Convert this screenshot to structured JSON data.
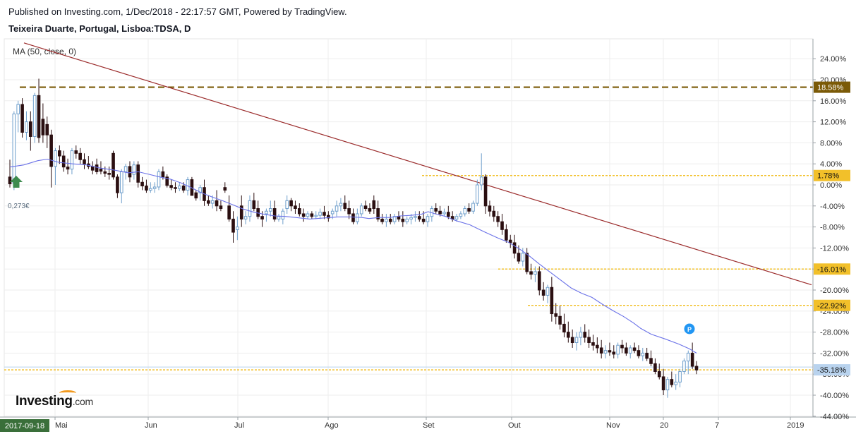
{
  "header": {
    "published": "Published on Investing.com, 1/Dec/2018 - 22:17:57 GMT, Powered by TradingView.",
    "symbol": "Teixeira Duarte, Portugal, Lisboa:TDSA, D"
  },
  "indicator_label": "MA (50, close, 0)",
  "price_note": "0,273€",
  "logo": {
    "brand": "Investing",
    "suffix": ".com"
  },
  "colors": {
    "up_fill": "#ffffff",
    "up_border": "#6f9fcc",
    "down": "#2b0f11",
    "ma_line": "#6b72e8",
    "trend_line": "#9b2b2b",
    "level_dashed_brown": "#7b5a07",
    "level_dotted": "#f2c02a",
    "grid": "#eeeeee",
    "current_tag": "#b9d3ee"
  },
  "chart_data": {
    "type": "candlestick",
    "y_unit": "% change",
    "ylim": [
      -44,
      26
    ],
    "y_ticks": [
      "24.00%",
      "20.00%",
      "16.00%",
      "12.00%",
      "8.00%",
      "4.00%",
      "0.00%",
      "-4.00%",
      "-8.00%",
      "-12.00%",
      "-16.00%",
      "-20.00%",
      "-24.00%",
      "-28.00%",
      "-32.00%",
      "-36.00%",
      "-40.00%",
      "-44.00%"
    ],
    "x_ticks": [
      "2017-09-18",
      "Mai",
      "Jun",
      "Jul",
      "Ago",
      "Set",
      "Out",
      "Nov",
      "20",
      "7",
      "2019"
    ],
    "level_tags": [
      {
        "label": "18.58%",
        "value": 18.58,
        "style": "dashed-brown"
      },
      {
        "label": "1.78%",
        "value": 1.78,
        "style": "dotted"
      },
      {
        "label": "-16.01%",
        "value": -16.01,
        "style": "dotted"
      },
      {
        "label": "-22.92%",
        "value": -22.92,
        "style": "dotted"
      },
      {
        "label": "-35.18%",
        "value": -35.18,
        "style": "current"
      }
    ],
    "candles": [
      [
        1.5,
        4.8,
        -0.5,
        0.2
      ],
      [
        0.3,
        14,
        -1,
        13.5
      ],
      [
        13.5,
        16,
        10,
        15.3
      ],
      [
        15.3,
        16.5,
        9,
        10
      ],
      [
        10,
        14,
        8.5,
        12
      ],
      [
        12,
        14,
        6.5,
        9.2
      ],
      [
        9.2,
        17.5,
        8,
        17
      ],
      [
        17,
        20.2,
        8,
        9
      ],
      [
        12.5,
        15.5,
        8,
        9.5
      ],
      [
        11.5,
        13,
        7,
        9.5
      ],
      [
        9.5,
        10.5,
        -0.5,
        3.5
      ],
      [
        3.5,
        7,
        0,
        6.5
      ],
      [
        6.5,
        7.5,
        4,
        5.5
      ],
      [
        5.5,
        6.5,
        2.5,
        3.4
      ],
      [
        3.4,
        5,
        2,
        3
      ],
      [
        3,
        7,
        2,
        6.5
      ],
      [
        6.5,
        7.5,
        5,
        6
      ],
      [
        6,
        7,
        4,
        4.8
      ],
      [
        4.8,
        6,
        3,
        4
      ],
      [
        4,
        5.5,
        3,
        3.5
      ],
      [
        3.5,
        4.5,
        2,
        2.8
      ],
      [
        3.8,
        5,
        2,
        2.5
      ],
      [
        3,
        4.5,
        2,
        2.6
      ],
      [
        2.5,
        3.5,
        1.5,
        2.2
      ],
      [
        2.2,
        3.5,
        1,
        2
      ],
      [
        6,
        6.5,
        1,
        1.5
      ],
      [
        1.5,
        2,
        -2.5,
        -1.5
      ],
      [
        -1.5,
        3,
        -3.5,
        2.5
      ],
      [
        2.5,
        4,
        1,
        3.5
      ],
      [
        3.5,
        4.5,
        0.5,
        1.5
      ],
      [
        2,
        4.5,
        1,
        3.8
      ],
      [
        3.8,
        4.5,
        -0.5,
        0.5
      ],
      [
        0.5,
        1.5,
        -1,
        -0.2
      ],
      [
        -0.2,
        1,
        -1.5,
        -1
      ],
      [
        -1,
        0.5,
        -1.5,
        -0.7
      ],
      [
        -0.7,
        0.5,
        -1.5,
        -0.4
      ],
      [
        -0.4,
        3,
        -1,
        2.5
      ],
      [
        2.5,
        3.5,
        1,
        1.5
      ],
      [
        1.5,
        2,
        -0.5,
        -0.1
      ],
      [
        -0.1,
        1,
        -1,
        -0.5
      ],
      [
        -0.5,
        0.5,
        -1.5,
        -0.7
      ],
      [
        -0.7,
        0.5,
        -1.2,
        -0.2
      ],
      [
        -0.2,
        0.5,
        -1.5,
        -1
      ],
      [
        -1,
        1.5,
        -2,
        1
      ],
      [
        1,
        1.5,
        -2,
        -2
      ],
      [
        -1.5,
        -1,
        -3,
        -2.5
      ],
      [
        -1.5,
        0,
        -3,
        -0.5
      ],
      [
        -0.5,
        1,
        -4,
        -3
      ],
      [
        -3,
        -2,
        -4,
        -3.5
      ],
      [
        -3.5,
        -2,
        -4.5,
        -3
      ],
      [
        -3,
        -1,
        -5,
        -4
      ],
      [
        -4,
        -3,
        -5,
        -4.5
      ],
      [
        -0.5,
        0.5,
        -1.5,
        -1
      ],
      [
        -4,
        -2,
        -7,
        -6.5
      ],
      [
        -6.5,
        -5,
        -11,
        -9
      ],
      [
        -8.5,
        -6,
        -10.5,
        -8
      ],
      [
        -4,
        -2,
        -8,
        -6.5
      ],
      [
        -6.5,
        -5,
        -7.5,
        -6
      ],
      [
        -6,
        -2,
        -7,
        -3
      ],
      [
        -3,
        -1.5,
        -5,
        -4.5
      ],
      [
        -4.5,
        -3,
        -6.5,
        -6
      ],
      [
        -6,
        -5,
        -8,
        -6.5
      ],
      [
        -5.5,
        -4.5,
        -7,
        -5
      ],
      [
        -5,
        -3,
        -6,
        -4.5
      ],
      [
        -4.5,
        -3,
        -7,
        -6.5
      ],
      [
        -6.5,
        -5.5,
        -7,
        -6
      ],
      [
        -6.5,
        -4.5,
        -7.5,
        -5
      ],
      [
        -4.5,
        -2,
        -5.5,
        -3
      ],
      [
        -3,
        -2.5,
        -5,
        -4
      ],
      [
        -4,
        -3,
        -5.5,
        -4.5
      ],
      [
        -4.5,
        -3.5,
        -6,
        -5.5
      ],
      [
        -5.5,
        -4.5,
        -7,
        -6
      ],
      [
        -6,
        -5,
        -6.5,
        -5.5
      ],
      [
        -5.5,
        -5,
        -6.5,
        -6
      ],
      [
        -6,
        -5,
        -6.5,
        -5.8
      ],
      [
        -5.8,
        -4.5,
        -6.5,
        -5.2
      ],
      [
        -5.2,
        -4,
        -6.5,
        -5.8
      ],
      [
        -5.8,
        -5,
        -7,
        -6.3
      ],
      [
        -5.5,
        -4.5,
        -6.5,
        -5
      ],
      [
        -5,
        -3,
        -6,
        -4
      ],
      [
        -4,
        -2.5,
        -5,
        -3.5
      ],
      [
        -3.5,
        -2,
        -5,
        -4.5
      ],
      [
        -4.5,
        -3,
        -6.5,
        -5.5
      ],
      [
        -5.5,
        -4.5,
        -7.5,
        -7
      ],
      [
        -7,
        -4.5,
        -7.5,
        -5.5
      ],
      [
        -5.5,
        -3.5,
        -6,
        -4
      ],
      [
        -4,
        -3,
        -5,
        -4.5
      ],
      [
        -4.5,
        -3.5,
        -5.5,
        -5
      ],
      [
        -3,
        -2,
        -5.5,
        -4.5
      ],
      [
        -4.5,
        -3,
        -7,
        -6.5
      ],
      [
        -6.5,
        -5.5,
        -7.5,
        -7
      ],
      [
        -7,
        -5.5,
        -8,
        -6.5
      ],
      [
        -6.5,
        -5.5,
        -7.5,
        -7
      ],
      [
        -7,
        -5.5,
        -7.5,
        -6
      ],
      [
        -6,
        -5,
        -7,
        -6.5
      ],
      [
        -6.5,
        -5,
        -8,
        -7
      ],
      [
        -7,
        -6,
        -7.5,
        -6.5
      ],
      [
        -6.5,
        -5.5,
        -7.5,
        -6.2
      ],
      [
        -6.2,
        -5,
        -7,
        -6
      ],
      [
        -6,
        -5,
        -7,
        -6.5
      ],
      [
        -6.5,
        -5,
        -7.5,
        -7
      ],
      [
        -7,
        -5.5,
        -8,
        -6
      ],
      [
        -6,
        -4,
        -7,
        -4.5
      ],
      [
        -4.5,
        -3.5,
        -5.5,
        -5
      ],
      [
        -5,
        -4,
        -6,
        -5.5
      ],
      [
        -5.5,
        -4.5,
        -6,
        -5.2
      ],
      [
        -5.2,
        -4,
        -6.5,
        -6
      ],
      [
        -6,
        -5,
        -7,
        -6.5
      ],
      [
        -6.5,
        -5.5,
        -7,
        -6
      ],
      [
        -6,
        -5,
        -6.5,
        -5.5
      ],
      [
        -5.5,
        -4,
        -6,
        -4.5
      ],
      [
        -4.5,
        -3.5,
        -5.5,
        -5
      ],
      [
        -5,
        -3,
        -5.5,
        -3.5
      ],
      [
        -3.5,
        1,
        -4,
        0
      ],
      [
        0,
        6,
        -1,
        1.5
      ],
      [
        1.5,
        2,
        -5.5,
        -4
      ],
      [
        -4,
        -3,
        -6,
        -5
      ],
      [
        -5,
        -4,
        -7,
        -6
      ],
      [
        -6,
        -5,
        -8,
        -7
      ],
      [
        -7,
        -5.5,
        -9.5,
        -8.5
      ],
      [
        -8.5,
        -7.5,
        -11,
        -10.5
      ],
      [
        -10.5,
        -9.5,
        -12,
        -11
      ],
      [
        -11,
        -9.5,
        -14,
        -13
      ],
      [
        -13,
        -11.5,
        -15,
        -14.5
      ],
      [
        -14.5,
        -12,
        -15.5,
        -13
      ],
      [
        -13,
        -12,
        -17,
        -16.5
      ],
      [
        -16.5,
        -15,
        -18,
        -17
      ],
      [
        -17,
        -15.5,
        -18.5,
        -16.5
      ],
      [
        -16.5,
        -15.5,
        -21,
        -20
      ],
      [
        -20,
        -18.5,
        -22,
        -21
      ],
      [
        -21,
        -19,
        -22.5,
        -19.5
      ],
      [
        -19.5,
        -17.5,
        -26,
        -24.5
      ],
      [
        -24.5,
        -22.5,
        -26.5,
        -25
      ],
      [
        -25,
        -23,
        -27.5,
        -26.5
      ],
      [
        -26.5,
        -24.5,
        -29,
        -28
      ],
      [
        -28,
        -26,
        -30,
        -29
      ],
      [
        -29,
        -27.5,
        -31,
        -30
      ],
      [
        -30,
        -28,
        -31.5,
        -29
      ],
      [
        -29,
        -27,
        -30.5,
        -28
      ],
      [
        -28,
        -26.5,
        -30,
        -29
      ],
      [
        -29,
        -27.5,
        -31,
        -30
      ],
      [
        -30,
        -28.5,
        -31.5,
        -30.5
      ],
      [
        -30.5,
        -29,
        -32,
        -31
      ],
      [
        -31,
        -29.5,
        -33,
        -32
      ],
      [
        -32,
        -30.5,
        -33,
        -31.5
      ],
      [
        -31.5,
        -30,
        -32.5,
        -31.8
      ],
      [
        -31.8,
        -30.5,
        -33,
        -32.2
      ],
      [
        -32.2,
        -30,
        -33,
        -30.5
      ],
      [
        -30.5,
        -29.5,
        -32,
        -31
      ],
      [
        -31,
        -30,
        -32.5,
        -32
      ],
      [
        -32,
        -30.5,
        -33,
        -31
      ],
      [
        -31,
        -30,
        -32,
        -31.5
      ],
      [
        -31.5,
        -30.5,
        -33,
        -32.5
      ],
      [
        -32.5,
        -31,
        -33.5,
        -32
      ],
      [
        -32,
        -31,
        -33.5,
        -33
      ],
      [
        -33,
        -31.5,
        -34.5,
        -34
      ],
      [
        -34,
        -33,
        -36,
        -35.5
      ],
      [
        -35.5,
        -34,
        -37,
        -36.5
      ],
      [
        -36.5,
        -35,
        -40,
        -39
      ],
      [
        -39,
        -36.5,
        -40.5,
        -37
      ],
      [
        -37,
        -35.5,
        -38.5,
        -38
      ],
      [
        -38,
        -36,
        -39,
        -37.5
      ],
      [
        -37.5,
        -35,
        -38.5,
        -35.5
      ],
      [
        -35.5,
        -33,
        -36,
        -33.5
      ],
      [
        -33.5,
        -31.5,
        -36,
        -32
      ],
      [
        -32,
        -30,
        -35,
        -34.5
      ],
      [
        -34.5,
        -33.5,
        -36,
        -35.2
      ]
    ],
    "moving_average": [
      [
        0,
        3.4
      ],
      [
        20,
        3.8
      ],
      [
        40,
        4.6
      ],
      [
        54,
        4.9
      ],
      [
        70,
        4.3
      ],
      [
        90,
        4
      ],
      [
        110,
        3.8
      ],
      [
        130,
        3.2
      ],
      [
        150,
        2.8
      ],
      [
        170,
        2.3
      ],
      [
        184,
        2.5
      ],
      [
        200,
        2
      ],
      [
        215,
        1.5
      ],
      [
        230,
        1.1
      ],
      [
        245,
        0.4
      ],
      [
        260,
        -0.5
      ],
      [
        275,
        -1.5
      ],
      [
        290,
        -2.3
      ],
      [
        305,
        -3
      ],
      [
        320,
        -3.8
      ],
      [
        335,
        -4.6
      ],
      [
        350,
        -5.2
      ],
      [
        365,
        -5.6
      ],
      [
        380,
        -5.9
      ],
      [
        395,
        -6
      ],
      [
        410,
        -6.2
      ],
      [
        430,
        -6.5
      ],
      [
        450,
        -6.3
      ],
      [
        470,
        -6.1
      ],
      [
        490,
        -6.1
      ],
      [
        505,
        -6.2
      ],
      [
        515,
        -6.4
      ],
      [
        530,
        -6.2
      ],
      [
        545,
        -6.2
      ],
      [
        560,
        -5.9
      ],
      [
        575,
        -5.8
      ],
      [
        590,
        -5.6
      ],
      [
        600,
        -5.1
      ],
      [
        610,
        -5.5
      ],
      [
        625,
        -6
      ],
      [
        640,
        -6.8
      ],
      [
        660,
        -7.6
      ],
      [
        680,
        -8.9
      ],
      [
        700,
        -10.1
      ],
      [
        715,
        -10.9
      ],
      [
        730,
        -12.1
      ],
      [
        745,
        -13.5
      ],
      [
        760,
        -15.1
      ],
      [
        775,
        -16.6
      ],
      [
        790,
        -18.1
      ],
      [
        805,
        -19.6
      ],
      [
        820,
        -20.6
      ],
      [
        835,
        -21.4
      ],
      [
        850,
        -22.7
      ],
      [
        865,
        -23.9
      ],
      [
        880,
        -25
      ],
      [
        895,
        -26.3
      ],
      [
        905,
        -27.3
      ],
      [
        920,
        -28.4
      ],
      [
        940,
        -29.3
      ],
      [
        960,
        -30.3
      ],
      [
        975,
        -31.2
      ],
      [
        985,
        -32
      ]
    ],
    "trend_line": {
      "from": [
        34,
        27
      ],
      "to": [
        1150,
        -19
      ]
    }
  }
}
